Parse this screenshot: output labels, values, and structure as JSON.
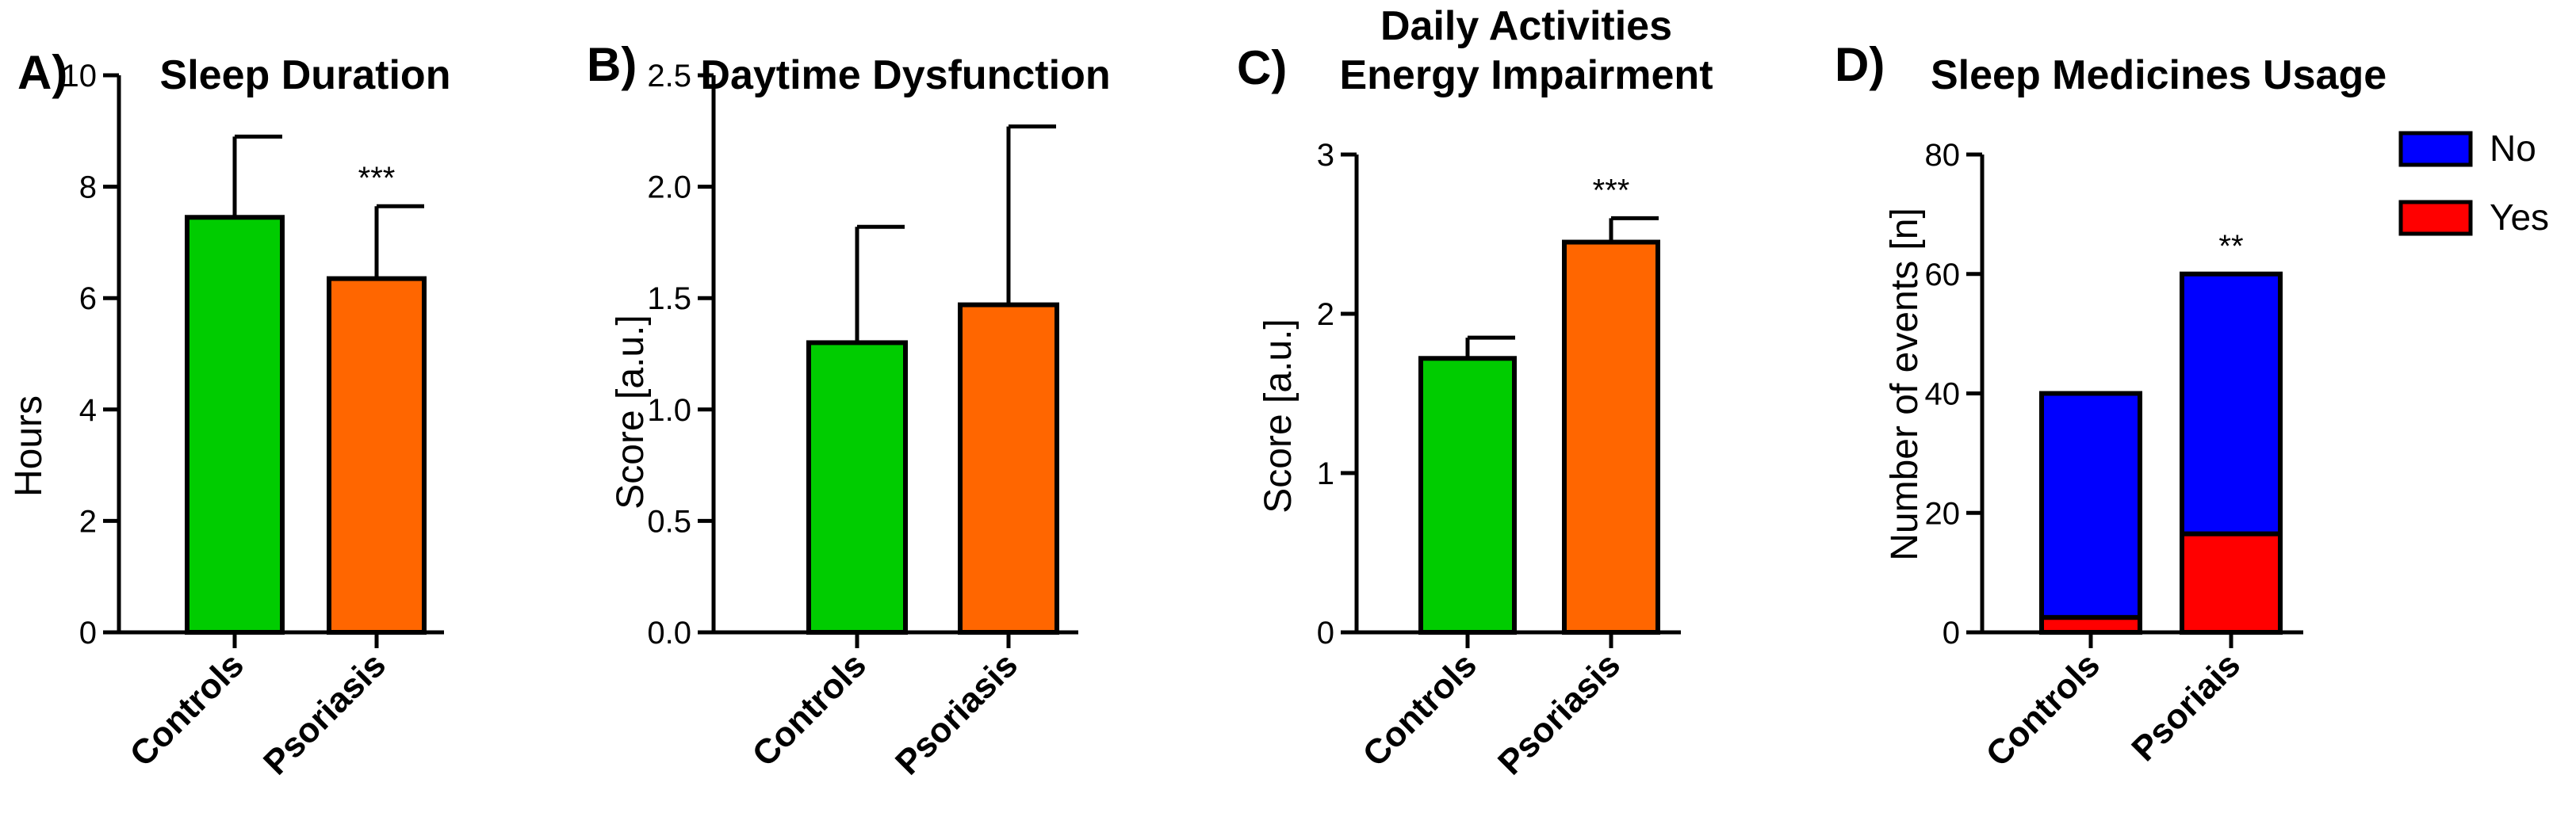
{
  "chart_data": [
    {
      "panel": "A)",
      "type": "bar",
      "title": "Sleep Duration",
      "xlabel": "",
      "ylabel": "Hours",
      "ylim": [
        0,
        10
      ],
      "yticks": [
        "0",
        "2",
        "4",
        "6",
        "8",
        "10"
      ],
      "categories": [
        "Controls",
        "Psoriasis"
      ],
      "values": [
        7.45,
        6.35
      ],
      "errors": [
        1.45,
        1.3
      ],
      "colors": [
        "#00cc00",
        "#ff6600"
      ],
      "significance": [
        "",
        "***"
      ],
      "grid": false
    },
    {
      "panel": "B)",
      "type": "bar",
      "title": "Daytime Dysfunction",
      "xlabel": "",
      "ylabel": "Score [a.u.]",
      "ylim": [
        0,
        2.5
      ],
      "yticks": [
        "0.0",
        "0.5",
        "1.0",
        "1.5",
        "2.0",
        "2.5"
      ],
      "categories": [
        "Controls",
        "Psoriasis"
      ],
      "values": [
        1.3,
        1.47
      ],
      "errors": [
        0.52,
        0.8
      ],
      "colors": [
        "#00cc00",
        "#ff6600"
      ],
      "significance": [
        "",
        ""
      ],
      "grid": false
    },
    {
      "panel": "C)",
      "type": "bar",
      "title": "Daily Activities",
      "subtitle": "Energy Impairment",
      "xlabel": "",
      "ylabel": "Score [a.u.]",
      "ylim": [
        0,
        3
      ],
      "yticks": [
        "0",
        "1",
        "2",
        "3"
      ],
      "categories": [
        "Controls",
        "Psoriasis"
      ],
      "values": [
        1.72,
        2.45
      ],
      "errors": [
        0.13,
        0.15
      ],
      "colors": [
        "#00cc00",
        "#ff6600"
      ],
      "significance": [
        "",
        "***"
      ],
      "grid": false
    },
    {
      "panel": "D)",
      "type": "stacked-bar",
      "title": "Sleep Medicines Usage",
      "xlabel": "",
      "ylabel": "Number of events [n]",
      "ylim": [
        0,
        80
      ],
      "yticks": [
        "0",
        "20",
        "40",
        "60",
        "80"
      ],
      "categories": [
        "Controls",
        "Psoriais"
      ],
      "series": [
        {
          "name": "Yes",
          "color": "#ff0000",
          "values": [
            2.5,
            16.5
          ]
        },
        {
          "name": "No",
          "color": "#0000ff",
          "values": [
            37.5,
            43.5
          ]
        }
      ],
      "legend": [
        "No",
        "Yes"
      ],
      "legend_position": "top-right",
      "significance": [
        "",
        "**"
      ],
      "grid": false
    }
  ]
}
